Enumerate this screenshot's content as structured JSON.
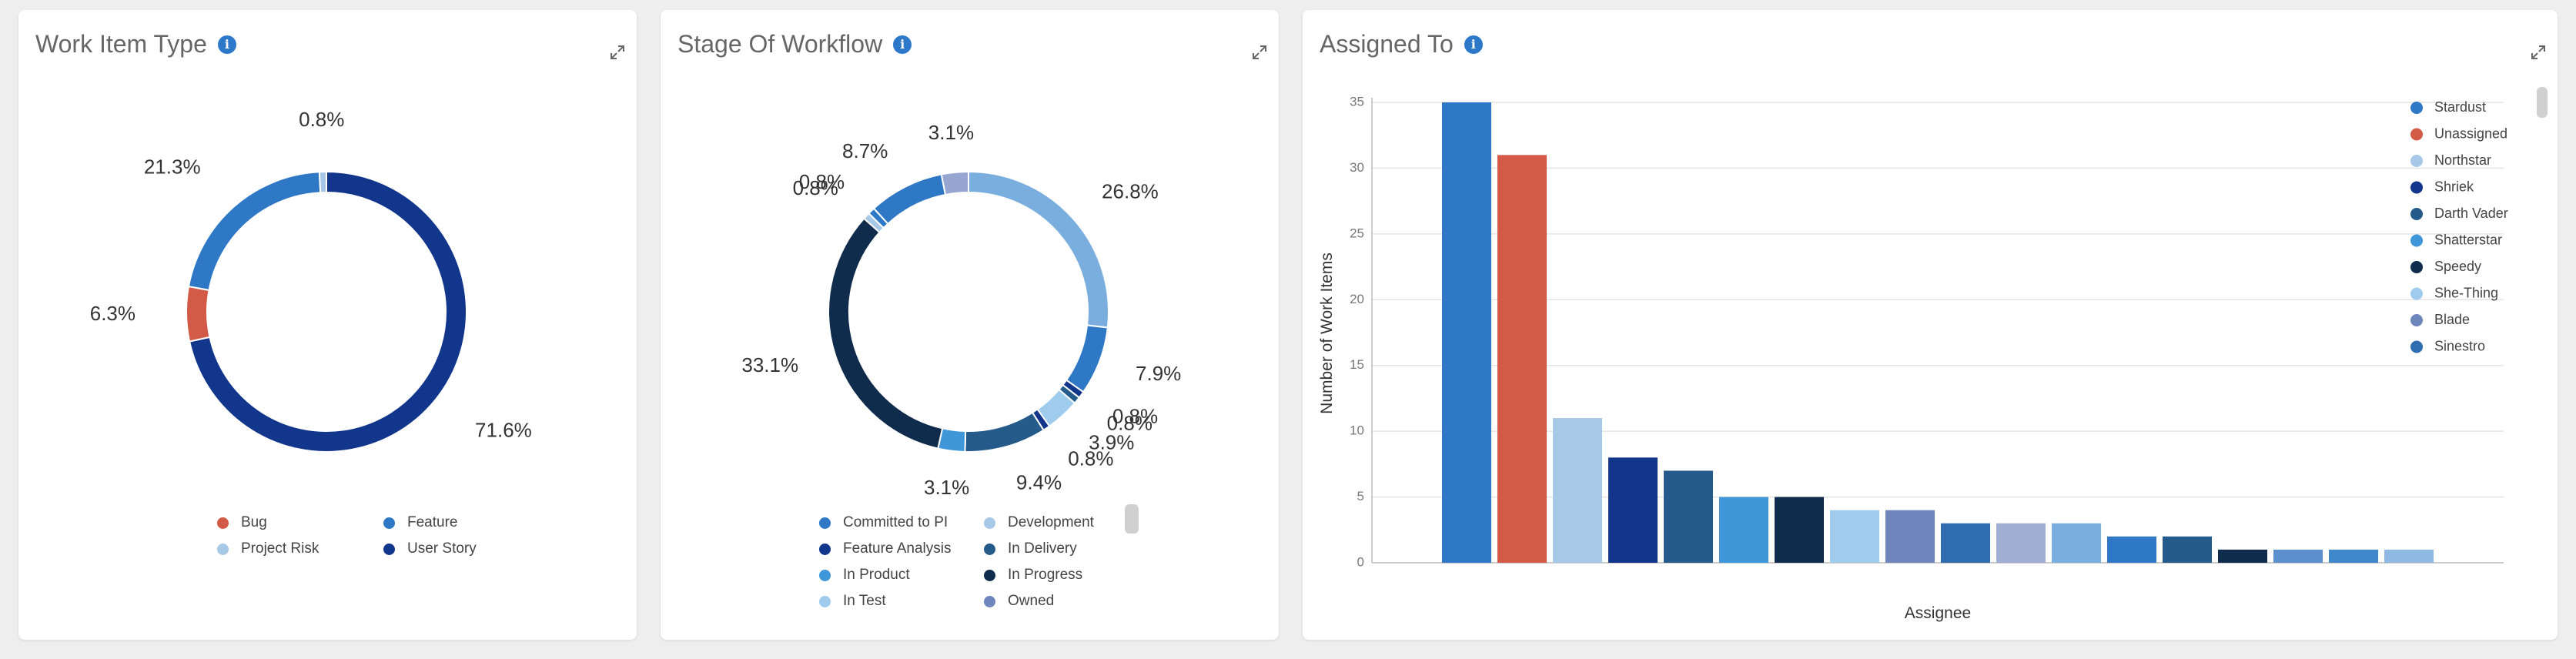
{
  "cards": {
    "work_item_type": {
      "title": "Work Item Type"
    },
    "stage_of_workflow": {
      "title": "Stage Of Workflow"
    },
    "assigned_to": {
      "title": "Assigned To"
    }
  },
  "icons": {
    "info": "info-icon",
    "expand": "expand-icon"
  },
  "chart_data": [
    {
      "type": "pie",
      "variant": "donut",
      "title": "Work Item Type",
      "slices": [
        {
          "label": "User Story",
          "value": 71.6,
          "display": "71.6%",
          "color": "#12368c"
        },
        {
          "label": "Bug",
          "value": 6.3,
          "display": "6.3%",
          "color": "#d45a48"
        },
        {
          "label": "Feature",
          "value": 21.3,
          "display": "21.3%",
          "color": "#2e78c6"
        },
        {
          "label": "Project Risk",
          "value": 0.8,
          "display": "0.8%",
          "color": "#a7c8e6"
        }
      ],
      "legend": [
        {
          "label": "Bug",
          "color": "#d45a48"
        },
        {
          "label": "Feature",
          "color": "#2e78c6"
        },
        {
          "label": "Project Risk",
          "color": "#a7c8e6"
        },
        {
          "label": "User Story",
          "color": "#12368c"
        }
      ]
    },
    {
      "type": "pie",
      "variant": "donut",
      "title": "Stage Of Workflow",
      "slices": [
        {
          "label": "Development",
          "value": 26.8,
          "display": "26.8%",
          "color": "#7aaede"
        },
        {
          "label": "Committed to PI",
          "value": 7.9,
          "display": "7.9%",
          "color": "#2e78c6"
        },
        {
          "label": "Feature Analysis",
          "value": 0.8,
          "display": "0.8%",
          "color": "#12368c"
        },
        {
          "label": "In Delivery",
          "value": 0.8,
          "display": "0.8%",
          "color": "#245b8a"
        },
        {
          "label": "In Test",
          "value": 3.9,
          "display": "3.9%",
          "color": "#9fcbed"
        },
        {
          "label": "Feature Analysis",
          "value": 0.8,
          "display": "0.8%",
          "color": "#12368c"
        },
        {
          "label": "In Delivery",
          "value": 9.4,
          "display": "9.4%",
          "color": "#245b8a"
        },
        {
          "label": "In Product",
          "value": 3.1,
          "display": "3.1%",
          "color": "#3f96d9"
        },
        {
          "label": "In Progress",
          "value": 33.1,
          "display": "33.1%",
          "color": "#0f2c4d"
        },
        {
          "label": "Development",
          "value": 0.8,
          "display": "0.8%",
          "color": "#a7c8e6"
        },
        {
          "label": "Committed to PI",
          "value": 0.8,
          "display": "0.8%",
          "color": "#2e78c6"
        },
        {
          "label": "Committed to PI",
          "value": 8.7,
          "display": "8.7%",
          "color": "#2e78c6"
        },
        {
          "label": "Owned",
          "value": 3.1,
          "display": "3.1%",
          "color": "#97a6d0"
        }
      ],
      "legend": [
        {
          "label": "Committed to PI",
          "color": "#2e78c6"
        },
        {
          "label": "Development",
          "color": "#a7c8e6"
        },
        {
          "label": "Feature Analysis",
          "color": "#12368c"
        },
        {
          "label": "In Delivery",
          "color": "#245b8a"
        },
        {
          "label": "In Product",
          "color": "#3f96d9"
        },
        {
          "label": "In Progress",
          "color": "#0f2c4d"
        },
        {
          "label": "In Test",
          "color": "#9fcbed"
        },
        {
          "label": "Owned",
          "color": "#6f86bd"
        }
      ]
    },
    {
      "type": "bar",
      "title": "Assigned To",
      "xlabel": "Assignee",
      "ylabel": "Number of Work Items",
      "ylim": [
        0,
        35
      ],
      "yticks": [
        "0",
        "5",
        "10",
        "15",
        "20",
        "25",
        "30",
        "35"
      ],
      "grid": true,
      "values": [
        35,
        31,
        11,
        8,
        7,
        5,
        5,
        4,
        4,
        3,
        3,
        3,
        2,
        2,
        1,
        1,
        1,
        1
      ],
      "colors": [
        "#2e78c6",
        "#d45a48",
        "#a7c8e6",
        "#12368c",
        "#245b8a",
        "#3f96d9",
        "#0f2c4d",
        "#9fcbed",
        "#6f86bd",
        "#2e6db0",
        "#a0aed4",
        "#7aaede",
        "#2e78c6",
        "#245b8a",
        "#0f2c4d",
        "#5b8fce",
        "#3f88cc",
        "#8fb8e3"
      ],
      "legend": [
        {
          "label": "Stardust",
          "color": "#2e78c6"
        },
        {
          "label": "Unassigned",
          "color": "#d45a48"
        },
        {
          "label": "Northstar",
          "color": "#a7c8e6"
        },
        {
          "label": "Shriek",
          "color": "#12368c"
        },
        {
          "label": "Darth Vader",
          "color": "#245b8a"
        },
        {
          "label": "Shatterstar",
          "color": "#3f96d9"
        },
        {
          "label": "Speedy",
          "color": "#0f2c4d"
        },
        {
          "label": "She-Thing",
          "color": "#9fcbed"
        },
        {
          "label": "Blade",
          "color": "#6f86bd"
        },
        {
          "label": "Sinestro",
          "color": "#2e6db0"
        }
      ]
    }
  ]
}
